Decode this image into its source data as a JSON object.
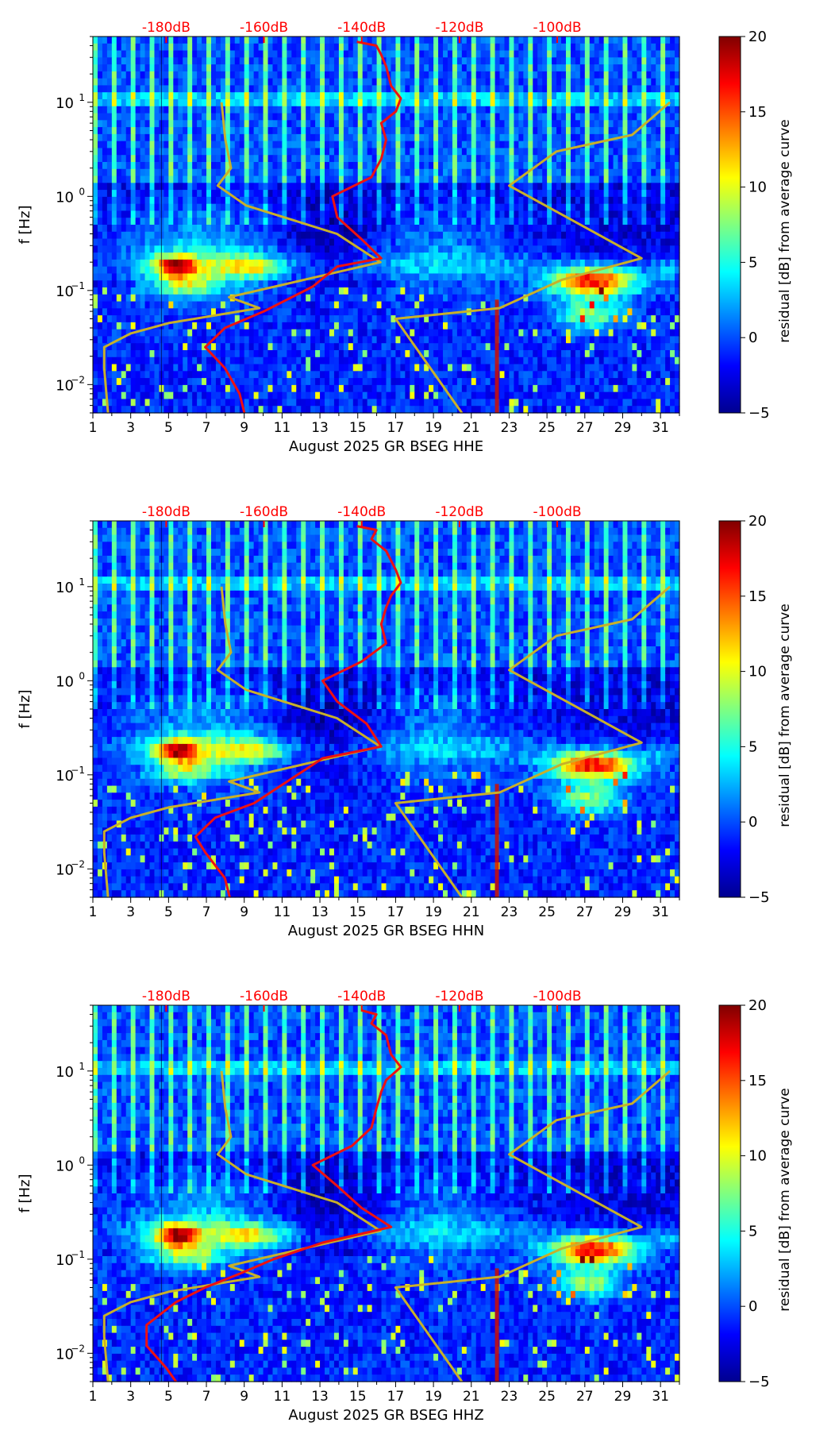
{
  "figure": {
    "month_label": "August 2025 GR BSEG",
    "db_scale_ticks": [
      "-180dB",
      "-160dB",
      "-140dB",
      "-120dB",
      "-100dB"
    ],
    "db_scale_color": "#ff0000"
  },
  "chart_data": [
    {
      "type": "heatmap",
      "title": "",
      "channel": "HHE",
      "xlabel": "August 2025 GR BSEG  HHE",
      "ylabel": "f [Hz]",
      "x_ticks": [
        "1",
        "3",
        "5",
        "7",
        "9",
        "11",
        "13",
        "15",
        "17",
        "19",
        "21",
        "23",
        "25",
        "27",
        "29",
        "31"
      ],
      "xlim": [
        1,
        32
      ],
      "y_scale": "log",
      "ylim": [
        0.005,
        50
      ],
      "y_ticks": [
        "10^-2",
        "10^-1",
        "10^0",
        "10^1"
      ],
      "colorbar": {
        "label": "residual [dB] from average curve",
        "range": [
          -5,
          20
        ],
        "ticks": [
          "-5",
          "0",
          "5",
          "10",
          "15",
          "20"
        ],
        "colormap": "jet"
      },
      "red_curve_db_vs_freq": [
        [
          -141,
          44
        ],
        [
          -137,
          40
        ],
        [
          -136,
          32
        ],
        [
          -135,
          24
        ],
        [
          -134,
          15
        ],
        [
          -132,
          11
        ],
        [
          -133,
          8
        ],
        [
          -136,
          6
        ],
        [
          -135,
          4
        ],
        [
          -136,
          2.5
        ],
        [
          -138,
          1.6
        ],
        [
          -146,
          1.0
        ],
        [
          -145,
          0.6
        ],
        [
          -140,
          0.35
        ],
        [
          -136,
          0.22
        ],
        [
          -145,
          0.18
        ],
        [
          -150,
          0.11
        ],
        [
          -160,
          0.06
        ],
        [
          -168,
          0.04
        ],
        [
          -172,
          0.025
        ],
        [
          -168,
          0.015
        ],
        [
          -165,
          0.008
        ],
        [
          -164,
          0.005
        ]
      ],
      "yellow_noise_models": [
        {
          "name": "low-noise-model",
          "points": [
            [
              1.8,
              0.005
            ],
            [
              1.6,
              0.015
            ],
            [
              1.6,
              0.025
            ],
            [
              3.0,
              0.035
            ],
            [
              5.0,
              0.045
            ],
            [
              9.8,
              0.065
            ],
            [
              8.2,
              0.085
            ],
            [
              16.2,
              0.2
            ],
            [
              13.9,
              0.4
            ],
            [
              9.1,
              0.8
            ],
            [
              7.6,
              1.3
            ],
            [
              8.3,
              2.0
            ],
            [
              8.0,
              4.0
            ],
            [
              7.8,
              10.0
            ]
          ]
        },
        {
          "name": "high-noise-model",
          "points": [
            [
              20.5,
              0.005
            ],
            [
              17.0,
              0.05
            ],
            [
              22.5,
              0.065
            ],
            [
              25.8,
              0.13
            ],
            [
              30.0,
              0.22
            ],
            [
              23.0,
              1.3
            ],
            [
              25.5,
              3.0
            ],
            [
              29.5,
              4.5
            ],
            [
              31.5,
              10.0
            ]
          ]
        }
      ]
    },
    {
      "type": "heatmap",
      "title": "",
      "channel": "HHN",
      "xlabel": "August 2025 GR BSEG  HHN",
      "ylabel": "f [Hz]",
      "x_ticks": [
        "1",
        "3",
        "5",
        "7",
        "9",
        "11",
        "13",
        "15",
        "17",
        "19",
        "21",
        "23",
        "25",
        "27",
        "29",
        "31"
      ],
      "xlim": [
        1,
        32
      ],
      "y_scale": "log",
      "ylim": [
        0.005,
        50
      ],
      "y_ticks": [
        "10^-2",
        "10^-1",
        "10^0",
        "10^1"
      ],
      "colorbar": {
        "label": "residual [dB] from average curve",
        "range": [
          -5,
          20
        ],
        "ticks": [
          "-5",
          "0",
          "5",
          "10",
          "15",
          "20"
        ],
        "colormap": "jet"
      },
      "red_curve_db_vs_freq": [
        [
          -141,
          44
        ],
        [
          -137,
          40
        ],
        [
          -138,
          32
        ],
        [
          -135,
          24
        ],
        [
          -133,
          15
        ],
        [
          -132,
          11
        ],
        [
          -134,
          8
        ],
        [
          -135,
          6
        ],
        [
          -136,
          4
        ],
        [
          -135,
          2.5
        ],
        [
          -140,
          1.6
        ],
        [
          -148,
          1.0
        ],
        [
          -145,
          0.6
        ],
        [
          -139,
          0.35
        ],
        [
          -136,
          0.2
        ],
        [
          -148,
          0.15
        ],
        [
          -156,
          0.08
        ],
        [
          -162,
          0.05
        ],
        [
          -170,
          0.035
        ],
        [
          -174,
          0.022
        ],
        [
          -172,
          0.015
        ],
        [
          -168,
          0.008
        ],
        [
          -167,
          0.005
        ]
      ],
      "yellow_noise_models": [
        {
          "name": "low-noise-model",
          "points": [
            [
              1.8,
              0.005
            ],
            [
              1.6,
              0.015
            ],
            [
              1.6,
              0.025
            ],
            [
              3.0,
              0.035
            ],
            [
              5.0,
              0.045
            ],
            [
              9.8,
              0.065
            ],
            [
              8.2,
              0.085
            ],
            [
              16.2,
              0.2
            ],
            [
              13.9,
              0.4
            ],
            [
              9.1,
              0.8
            ],
            [
              7.6,
              1.3
            ],
            [
              8.3,
              2.0
            ],
            [
              8.0,
              4.0
            ],
            [
              7.8,
              10.0
            ]
          ]
        },
        {
          "name": "high-noise-model",
          "points": [
            [
              20.5,
              0.005
            ],
            [
              17.0,
              0.05
            ],
            [
              22.5,
              0.065
            ],
            [
              25.8,
              0.13
            ],
            [
              30.0,
              0.22
            ],
            [
              23.0,
              1.3
            ],
            [
              25.5,
              3.0
            ],
            [
              29.5,
              4.5
            ],
            [
              31.5,
              10.0
            ]
          ]
        }
      ]
    },
    {
      "type": "heatmap",
      "title": "",
      "channel": "HHZ",
      "xlabel": "August 2025 GR BSEG  HHZ",
      "ylabel": "f [Hz]",
      "x_ticks": [
        "1",
        "3",
        "5",
        "7",
        "9",
        "11",
        "13",
        "15",
        "17",
        "19",
        "21",
        "23",
        "25",
        "27",
        "29",
        "31"
      ],
      "xlim": [
        1,
        32
      ],
      "y_scale": "log",
      "ylim": [
        0.005,
        50
      ],
      "y_ticks": [
        "10^-2",
        "10^-1",
        "10^0",
        "10^1"
      ],
      "colorbar": {
        "label": "residual [dB] from average curve",
        "range": [
          -5,
          20
        ],
        "ticks": [
          "-5",
          "0",
          "5",
          "10",
          "15",
          "20"
        ],
        "colormap": "jet"
      },
      "red_curve_db_vs_freq": [
        [
          -140,
          44
        ],
        [
          -137,
          40
        ],
        [
          -138,
          32
        ],
        [
          -135,
          24
        ],
        [
          -134,
          15
        ],
        [
          -132,
          11
        ],
        [
          -135,
          8
        ],
        [
          -136,
          6
        ],
        [
          -137,
          4
        ],
        [
          -138,
          2.5
        ],
        [
          -142,
          1.6
        ],
        [
          -150,
          1.0
        ],
        [
          -145,
          0.6
        ],
        [
          -140,
          0.35
        ],
        [
          -134,
          0.22
        ],
        [
          -148,
          0.15
        ],
        [
          -158,
          0.1
        ],
        [
          -165,
          0.07
        ],
        [
          -172,
          0.05
        ],
        [
          -178,
          0.035
        ],
        [
          -184,
          0.02
        ],
        [
          -184,
          0.012
        ],
        [
          -180,
          0.007
        ],
        [
          -178,
          0.005
        ]
      ],
      "yellow_noise_models": [
        {
          "name": "low-noise-model",
          "points": [
            [
              1.8,
              0.005
            ],
            [
              1.6,
              0.015
            ],
            [
              1.6,
              0.025
            ],
            [
              3.0,
              0.035
            ],
            [
              5.0,
              0.045
            ],
            [
              9.8,
              0.065
            ],
            [
              8.2,
              0.085
            ],
            [
              16.2,
              0.2
            ],
            [
              13.9,
              0.4
            ],
            [
              9.1,
              0.8
            ],
            [
              7.6,
              1.3
            ],
            [
              8.3,
              2.0
            ],
            [
              8.0,
              4.0
            ],
            [
              7.8,
              10.0
            ]
          ]
        },
        {
          "name": "high-noise-model",
          "points": [
            [
              20.5,
              0.005
            ],
            [
              17.0,
              0.05
            ],
            [
              22.5,
              0.065
            ],
            [
              25.8,
              0.13
            ],
            [
              30.0,
              0.22
            ],
            [
              23.0,
              1.3
            ],
            [
              25.5,
              3.0
            ],
            [
              29.5,
              4.5
            ],
            [
              31.5,
              10.0
            ]
          ]
        }
      ]
    }
  ]
}
